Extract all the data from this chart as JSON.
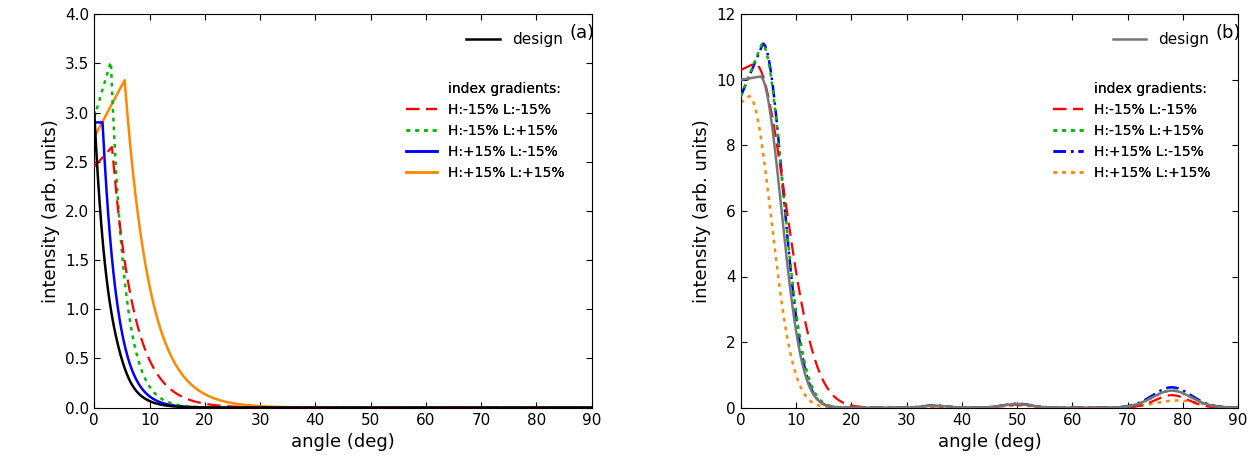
{
  "panel_a": {
    "ylabel": "intensity (arb. units)",
    "xlabel": "angle (deg)",
    "xlim": [
      0,
      90
    ],
    "ylim": [
      0,
      4.0
    ],
    "yticks": [
      0.0,
      0.5,
      1.0,
      1.5,
      2.0,
      2.5,
      3.0,
      3.5,
      4.0
    ],
    "xticks": [
      0,
      10,
      20,
      30,
      40,
      50,
      60,
      70,
      80,
      90
    ],
    "label": "(a)",
    "design": {
      "color": "#000000",
      "lw": 1.8,
      "p0": 3.0,
      "p1": 2.65,
      "decay": 0.38
    },
    "curves": [
      {
        "label": "H:-15% L:-15%",
        "color": "#ff0000",
        "linestyle": "dashed",
        "p0": 2.45,
        "peak": 2.65,
        "peak_ang": 3.2,
        "decay1": 0.35,
        "decay2": 0.25,
        "lw": 1.6
      },
      {
        "label": "H:-15% L:+15%",
        "color": "#00bb00",
        "linestyle": "dotted",
        "p0": 2.95,
        "peak": 3.52,
        "peak_ang": 3.0,
        "decay1": 0.55,
        "decay2": 0.4,
        "lw": 1.8
      },
      {
        "label": "H:+15% L:-15%",
        "color": "#0000ff",
        "linestyle": "solid",
        "p0": 2.9,
        "peak": 2.9,
        "peak_ang": 1.5,
        "decay1": 0.0,
        "decay2": 0.38,
        "lw": 1.8
      },
      {
        "label": "H:+15% L:+15%",
        "color": "#ff8800",
        "linestyle": "solid",
        "p0": 2.75,
        "peak": 3.33,
        "peak_ang": 5.5,
        "decay1": 0.18,
        "decay2": 0.22,
        "lw": 1.8
      }
    ]
  },
  "panel_b": {
    "ylabel": "intensity (arb. units)",
    "xlabel": "angle (deg)",
    "xlim": [
      0,
      90
    ],
    "ylim": [
      0,
      12
    ],
    "yticks": [
      0,
      2,
      4,
      6,
      8,
      10,
      12
    ],
    "xticks": [
      0,
      10,
      20,
      30,
      40,
      50,
      60,
      70,
      80,
      90
    ],
    "label": "(b)",
    "design": {
      "color": "#777777",
      "lw": 1.8
    },
    "curves": [
      {
        "label": "H:-15% L:-15%",
        "color": "#ff0000",
        "linestyle": "dashed",
        "lw": 1.6
      },
      {
        "label": "H:-15% L:+15%",
        "color": "#00bb00",
        "linestyle": "dotted",
        "lw": 1.8
      },
      {
        "label": "H:+15% L:-15%",
        "color": "#0000ff",
        "linestyle": "dashdot",
        "lw": 1.8
      },
      {
        "label": "H:+15% L:+15%",
        "color": "#ff8800",
        "linestyle": "dotted",
        "lw": 1.8
      }
    ]
  },
  "design_label": "design",
  "legend_title": "index gradients:",
  "figure_bg": "#ffffff"
}
